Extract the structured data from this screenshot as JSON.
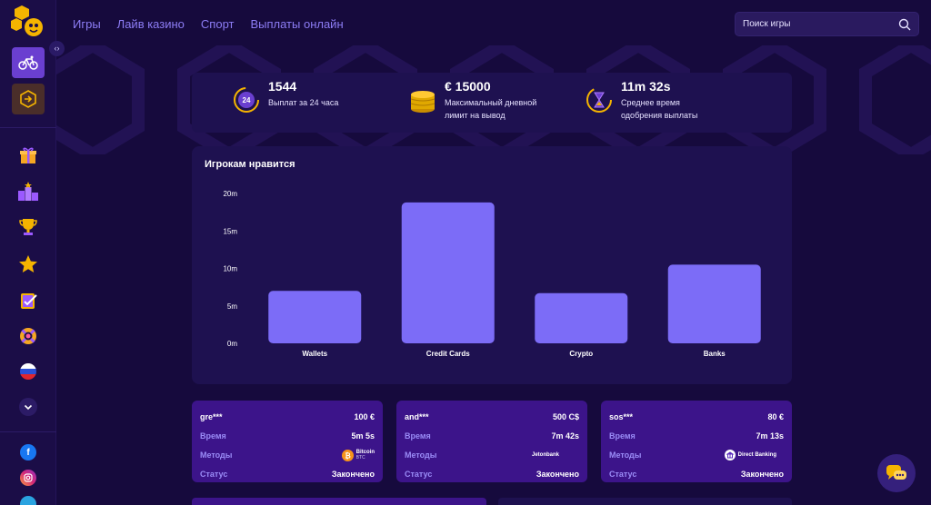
{
  "nav": [
    "Игры",
    "Лайв казино",
    "Спорт",
    "Выплаты онлайн"
  ],
  "search": {
    "placeholder": "Поиск игры"
  },
  "stats": [
    {
      "value": "1544",
      "label_line1": "Выплат за 24 часа",
      "label_line2": "",
      "icon": "clock-24-icon",
      "icon_text": "24"
    },
    {
      "value": "€ 15000",
      "label_line1": "Максимальный дневной",
      "label_line2": "лимит на вывод",
      "icon": "coin-stack-icon"
    },
    {
      "value": "11m 32s",
      "label_line1": "Среднее время",
      "label_line2": "одобрения выплаты",
      "icon": "hourglass-icon"
    }
  ],
  "chart_title": "Игрокам нравится",
  "chart_data": {
    "type": "bar",
    "title": "Игрокам нравится",
    "categories": [
      "Wallets",
      "Credit Cards",
      "Crypto",
      "Banks"
    ],
    "values": [
      7,
      18.8,
      6.7,
      10.5
    ],
    "ylim": [
      0,
      20
    ],
    "yticks": [
      "0m",
      "5m",
      "10m",
      "15m",
      "20m"
    ],
    "bar_color": "#7c6cf7",
    "grid": false
  },
  "payouts": [
    {
      "user": "gre***",
      "amount": "100 €",
      "time_label": "Время",
      "time": "5m 5s",
      "methods_label": "Методы",
      "method": "Bitcoin",
      "method_sub": "BTC",
      "status_label": "Статус",
      "status": "Закончено"
    },
    {
      "user": "and***",
      "amount": "500 C$",
      "time_label": "Время",
      "time": "7m 42s",
      "methods_label": "Методы",
      "method": "Jetonbank",
      "method_sub": "",
      "status_label": "Статус",
      "status": "Закончено"
    },
    {
      "user": "sos***",
      "amount": "80 €",
      "time_label": "Время",
      "time": "7m 13s",
      "methods_label": "Методы",
      "method": "Direct Banking",
      "method_sub": "",
      "status_label": "Статус",
      "status": "Закончено"
    }
  ],
  "colors": {
    "background": "#160a3d",
    "sidebar": "#1b0d47",
    "card": "#1e1150",
    "payout_card": "#3c148a",
    "accent": "#7c6cf7",
    "nav_text": "#8d7df5"
  },
  "sidebar_icons": [
    "bicycle-icon",
    "sign-in-icon",
    "gift-icon",
    "podium-icon",
    "trophy-icon",
    "star-icon",
    "tasks-icon",
    "lifebuoy-icon",
    "russia-flag-icon",
    "chevron-down-icon",
    "facebook-icon",
    "instagram-icon",
    "telegram-icon"
  ]
}
